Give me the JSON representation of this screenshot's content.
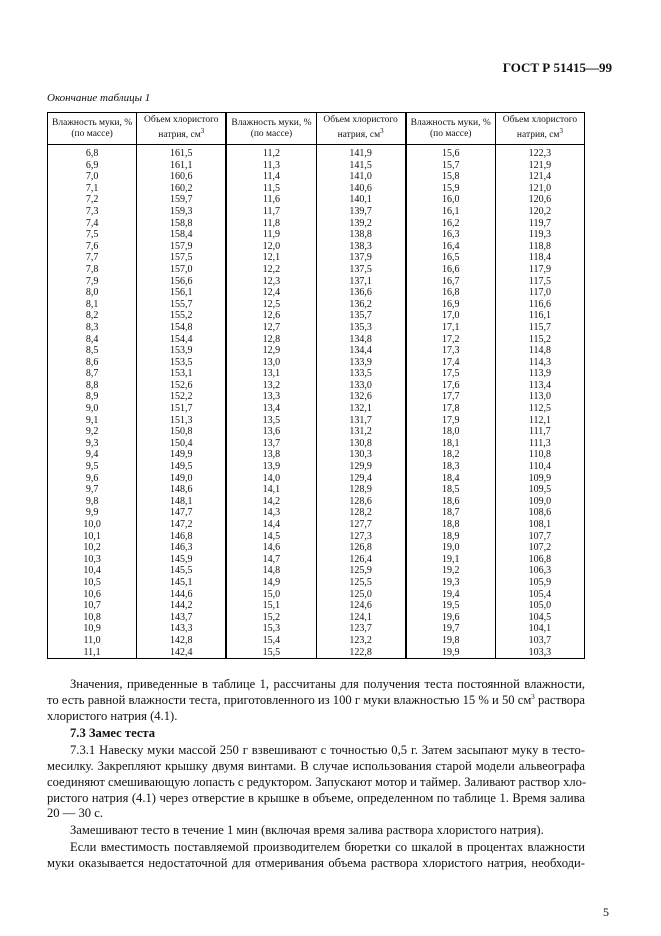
{
  "header": {
    "doc_code": "ГОСТ Р 51415—99"
  },
  "table_caption": "Окончание таблицы 1",
  "table": {
    "headers": [
      "Влажность муки, % (по массе)",
      "Объем хлористого натрия, см",
      "Влажность муки, % (по массе)",
      "Объем хлористого натрия, см",
      "Влажность муки, % (по массе)",
      "Объем хлористого натрия, см"
    ],
    "unit_superscript": "3",
    "rows": [
      [
        "6,8",
        "161,5",
        "11,2",
        "141,9",
        "15,6",
        "122,3"
      ],
      [
        "6,9",
        "161,1",
        "11,3",
        "141,5",
        "15,7",
        "121,9"
      ],
      [
        "7,0",
        "160,6",
        "11,4",
        "141,0",
        "15,8",
        "121,4"
      ],
      [
        "7,1",
        "160,2",
        "11,5",
        "140,6",
        "15,9",
        "121,0"
      ],
      [
        "7,2",
        "159,7",
        "11,6",
        "140,1",
        "16,0",
        "120,6"
      ],
      [
        "7,3",
        "159,3",
        "11,7",
        "139,7",
        "16,1",
        "120,2"
      ],
      [
        "7,4",
        "158,8",
        "11,8",
        "139,2",
        "16,2",
        "119,7"
      ],
      [
        "7,5",
        "158,4",
        "11,9",
        "138,8",
        "16,3",
        "119,3"
      ],
      [
        "7,6",
        "157,9",
        "12,0",
        "138,3",
        "16,4",
        "118,8"
      ],
      [
        "7,7",
        "157,5",
        "12,1",
        "137,9",
        "16,5",
        "118,4"
      ],
      [
        "7,8",
        "157,0",
        "12,2",
        "137,5",
        "16,6",
        "117,9"
      ],
      [
        "7,9",
        "156,6",
        "12,3",
        "137,1",
        "16,7",
        "117,5"
      ],
      [
        "8,0",
        "156,1",
        "12,4",
        "136,6",
        "16,8",
        "117,0"
      ],
      [
        "8,1",
        "155,7",
        "12,5",
        "136,2",
        "16,9",
        "116,6"
      ],
      [
        "8,2",
        "155,2",
        "12,6",
        "135,7",
        "17,0",
        "116,1"
      ],
      [
        "8,3",
        "154,8",
        "12,7",
        "135,3",
        "17,1",
        "115,7"
      ],
      [
        "8,4",
        "154,4",
        "12,8",
        "134,8",
        "17,2",
        "115,2"
      ],
      [
        "8,5",
        "153,9",
        "12,9",
        "134,4",
        "17,3",
        "114,8"
      ],
      [
        "8,6",
        "153,5",
        "13,0",
        "133,9",
        "17,4",
        "114,3"
      ],
      [
        "8,7",
        "153,1",
        "13,1",
        "133,5",
        "17,5",
        "113,9"
      ],
      [
        "8,8",
        "152,6",
        "13,2",
        "133,0",
        "17,6",
        "113,4"
      ],
      [
        "8,9",
        "152,2",
        "13,3",
        "132,6",
        "17,7",
        "113,0"
      ],
      [
        "9,0",
        "151,7",
        "13,4",
        "132,1",
        "17,8",
        "112,5"
      ],
      [
        "9,1",
        "151,3",
        "13,5",
        "131,7",
        "17,9",
        "112,1"
      ],
      [
        "9,2",
        "150,8",
        "13,6",
        "131,2",
        "18,0",
        "111,7"
      ],
      [
        "9,3",
        "150,4",
        "13,7",
        "130,8",
        "18,1",
        "111,3"
      ],
      [
        "9,4",
        "149,9",
        "13,8",
        "130,3",
        "18,2",
        "110,8"
      ],
      [
        "9,5",
        "149,5",
        "13,9",
        "129,9",
        "18,3",
        "110,4"
      ],
      [
        "9,6",
        "149,0",
        "14,0",
        "129,4",
        "18,4",
        "109,9"
      ],
      [
        "9,7",
        "148,6",
        "14,1",
        "128,9",
        "18,5",
        "109,5"
      ],
      [
        "9,8",
        "148,1",
        "14,2",
        "128,6",
        "18,6",
        "109,0"
      ],
      [
        "9,9",
        "147,7",
        "14,3",
        "128,2",
        "18,7",
        "108,6"
      ],
      [
        "10,0",
        "147,2",
        "14,4",
        "127,7",
        "18,8",
        "108,1"
      ],
      [
        "10,1",
        "146,8",
        "14,5",
        "127,3",
        "18,9",
        "107,7"
      ],
      [
        "10,2",
        "146,3",
        "14,6",
        "126,8",
        "19,0",
        "107,2"
      ],
      [
        "10,3",
        "145,9",
        "14,7",
        "126,4",
        "19,1",
        "106,8"
      ],
      [
        "10,4",
        "145,5",
        "14,8",
        "125,9",
        "19,2",
        "106,3"
      ],
      [
        "10,5",
        "145,1",
        "14,9",
        "125,5",
        "19,3",
        "105,9"
      ],
      [
        "10,6",
        "144,6",
        "15,0",
        "125,0",
        "19,4",
        "105,4"
      ],
      [
        "10,7",
        "144,2",
        "15,1",
        "124,6",
        "19,5",
        "105,0"
      ],
      [
        "10,8",
        "143,7",
        "15,2",
        "124,1",
        "19,6",
        "104,5"
      ],
      [
        "10,9",
        "143,3",
        "15,3",
        "123,7",
        "19,7",
        "104,1"
      ],
      [
        "11,0",
        "142,8",
        "15,4",
        "123,2",
        "19,8",
        "103,7"
      ],
      [
        "11,1",
        "142,4",
        "15,5",
        "122,8",
        "19,9",
        "103,3"
      ]
    ]
  },
  "text": {
    "p1": [
      "Значения, приведенные в таблице 1, рассчитаны для получения теста постоянной влажности,",
      "то есть равной влажности теста, приготовленного из 100 г муки влажностью 15 % и 50 см",
      "3",
      " раствора",
      "хлористого натрия (4.1)."
    ],
    "section_heading": "7.3  Замес теста",
    "p2": [
      "7.3.1  Навеску муки массой 250 г взвешивают с точностью 0,5 г. Затем засыпают муку в тесто-",
      "месилку. Закрепляют крышку двумя винтами. В случае использования старой модели альвеографа",
      "соединяют смешивающую лопасть с редуктором. Запускают мотор и таймер. Заливают раствор хло-",
      "ристого натрия (4.1) через отверстие в крышке в объеме, определенном по таблице 1. Время залива",
      "20 — 30 с."
    ],
    "p3": "Замешивают тесто в течение 1 мин (включая время залива раствора хлористого натрия).",
    "p4": [
      "Если вместимость поставляемой производителем бюретки со шкалой в процентах влажности",
      "муки оказывается недостаточной для отмеривания объема раствора хлористого натрия, необходи-"
    ]
  },
  "page_number": "5"
}
